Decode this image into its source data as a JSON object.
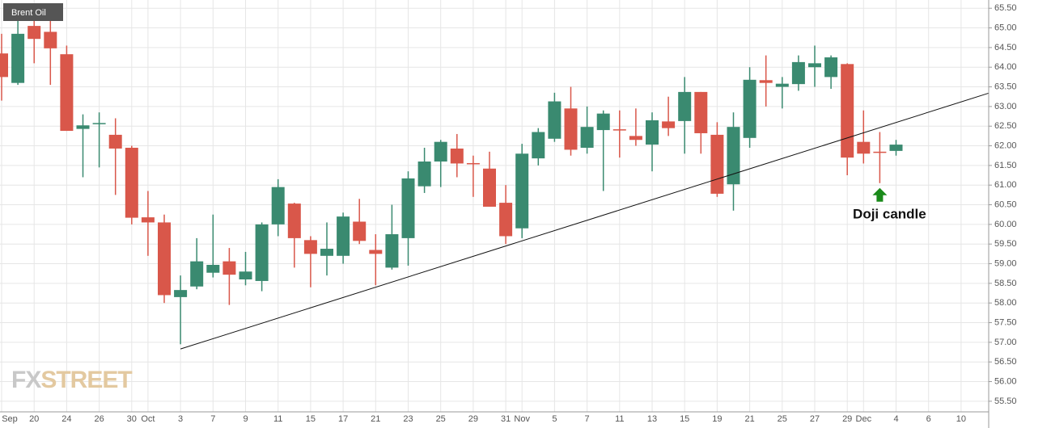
{
  "chart_data": {
    "type": "candlestick",
    "categories": [
      "Sep",
      null,
      "20",
      null,
      "24",
      null,
      "26",
      null,
      "30",
      "Oct",
      null,
      "3",
      null,
      "7",
      null,
      "9",
      null,
      "11",
      null,
      "15",
      null,
      "17",
      null,
      "21",
      null,
      "23",
      null,
      "25",
      null,
      "29",
      null,
      "31",
      "Nov",
      null,
      "5",
      null,
      "7",
      null,
      "11",
      null,
      "13",
      null,
      "15",
      null,
      "19",
      null,
      "21",
      null,
      "25",
      null,
      "27",
      null,
      "29",
      "Dec",
      null,
      "4",
      null,
      "6",
      null,
      "10"
    ],
    "series": [
      {
        "name": "Brent Oil",
        "up_color": "#3a8a70",
        "down_color": "#d9574a",
        "open": [
          64.35,
          63.6,
          65.05,
          64.9,
          64.33,
          62.43,
          62.55,
          62.28,
          61.95,
          60.18,
          60.05,
          58.15,
          58.42,
          58.77,
          59.06,
          58.6,
          58.56,
          60.0,
          60.53,
          59.6,
          59.2,
          59.2,
          60.07,
          59.35,
          58.9,
          59.65,
          60.97,
          61.6,
          61.93,
          61.56,
          61.42,
          60.55,
          59.9,
          61.68,
          62.18,
          62.95,
          61.95,
          62.4,
          62.42,
          62.25,
          62.03,
          62.62,
          62.63,
          63.37,
          62.28,
          61.02,
          62.2,
          63.67,
          63.5,
          63.57,
          64.0,
          63.75,
          64.08,
          62.1,
          61.85,
          61.87,
          null,
          null,
          null,
          null
        ],
        "high": [
          64.85,
          65.55,
          65.25,
          65.3,
          64.55,
          62.8,
          62.85,
          62.7,
          62.0,
          60.85,
          60.25,
          58.7,
          59.65,
          60.25,
          59.4,
          59.3,
          60.05,
          61.15,
          60.55,
          59.7,
          60.05,
          60.3,
          60.65,
          59.75,
          60.5,
          61.35,
          61.95,
          62.15,
          62.3,
          61.75,
          61.85,
          61.0,
          62.05,
          62.45,
          63.35,
          63.5,
          63.0,
          62.9,
          62.9,
          62.95,
          62.85,
          63.25,
          63.75,
          63.37,
          62.6,
          62.85,
          64.0,
          64.3,
          63.75,
          64.3,
          64.55,
          64.3,
          64.1,
          62.9,
          62.35,
          62.15,
          null,
          null,
          null,
          null
        ],
        "low": [
          63.15,
          63.55,
          64.1,
          63.55,
          62.38,
          61.2,
          61.45,
          60.75,
          60.0,
          59.2,
          58.0,
          56.95,
          58.35,
          58.65,
          57.95,
          58.45,
          58.3,
          59.7,
          58.9,
          58.4,
          58.7,
          59.0,
          59.5,
          58.45,
          58.85,
          58.95,
          60.8,
          60.95,
          61.2,
          60.7,
          60.45,
          59.5,
          59.65,
          61.5,
          62.1,
          61.75,
          61.8,
          60.85,
          61.7,
          62.0,
          61.35,
          62.25,
          61.8,
          61.8,
          60.7,
          60.35,
          61.95,
          63.0,
          62.95,
          63.4,
          63.5,
          63.45,
          61.25,
          61.55,
          61.05,
          61.75,
          null,
          null,
          null,
          null
        ],
        "close": [
          63.75,
          64.85,
          64.72,
          64.48,
          62.38,
          62.52,
          62.58,
          61.93,
          60.17,
          60.05,
          58.2,
          58.33,
          59.06,
          58.97,
          58.72,
          58.8,
          60.0,
          60.95,
          59.65,
          59.25,
          59.38,
          60.2,
          59.58,
          59.25,
          59.75,
          61.17,
          61.6,
          62.1,
          61.55,
          61.53,
          60.45,
          59.7,
          61.8,
          62.35,
          63.13,
          61.9,
          62.48,
          62.82,
          62.4,
          62.15,
          62.65,
          62.45,
          63.37,
          62.32,
          60.78,
          62.48,
          63.68,
          63.6,
          63.58,
          64.13,
          64.1,
          64.25,
          61.7,
          61.8,
          61.82,
          62.03,
          null,
          null,
          null,
          null
        ]
      }
    ],
    "ylim": [
      55.23,
      65.71
    ],
    "yticks": [
      {
        "value": 55.5,
        "label": "55.50"
      },
      {
        "value": 56,
        "label": "56.00"
      },
      {
        "value": 56.5,
        "label": "56.50"
      },
      {
        "value": 57,
        "label": "57.00"
      },
      {
        "value": 57.5,
        "label": "57.50"
      },
      {
        "value": 58,
        "label": "58.00"
      },
      {
        "value": 58.5,
        "label": "58.50"
      },
      {
        "value": 59,
        "label": "59.00"
      },
      {
        "value": 59.5,
        "label": "59.50"
      },
      {
        "value": 60,
        "label": "60.00"
      },
      {
        "value": 60.5,
        "label": "60.50"
      },
      {
        "value": 61,
        "label": "61.00"
      },
      {
        "value": 61.5,
        "label": "61.50"
      },
      {
        "value": 62,
        "label": "62.00"
      },
      {
        "value": 62.5,
        "label": "62.50"
      },
      {
        "value": 63,
        "label": "63.00"
      },
      {
        "value": 63.5,
        "label": "63.50"
      },
      {
        "value": 64,
        "label": "64.00"
      },
      {
        "value": 64.5,
        "label": "64.50"
      },
      {
        "value": 65,
        "label": "65.00"
      },
      {
        "value": 65.5,
        "label": "65.50"
      }
    ],
    "grid": true,
    "trendline": {
      "x": [
        11,
        60.7
      ],
      "y": [
        56.83,
        63.34
      ]
    },
    "annotation": {
      "text": "Doji candle",
      "x": 54,
      "color": "#1a8a1a"
    },
    "watermark": [
      "FX",
      "STREET"
    ]
  }
}
